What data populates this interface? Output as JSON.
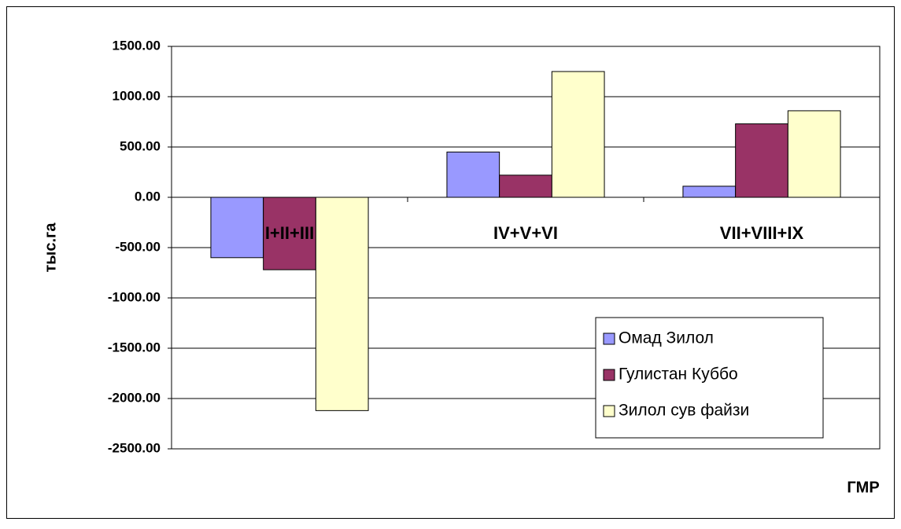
{
  "chart_data": {
    "type": "bar",
    "categories": [
      "I+II+III",
      "IV+V+VI",
      "VII+VIII+IX"
    ],
    "series": [
      {
        "name": "Омад Зилол",
        "color": "#9999ff",
        "values": [
          -600,
          450,
          110
        ]
      },
      {
        "name": "Гулистан Куббо",
        "color": "#993366",
        "values": [
          -720,
          220,
          730
        ]
      },
      {
        "name": "Зилол сув файзи",
        "color": "#ffffcc",
        "values": [
          -2120,
          1250,
          860
        ]
      }
    ],
    "ylabel": "тыс.га",
    "xlabel": "ГМР",
    "ylim": [
      -2500,
      1500
    ],
    "yticks": [
      {
        "value": 1500,
        "label": "1500.00"
      },
      {
        "value": 1000,
        "label": "1000.00"
      },
      {
        "value": 500,
        "label": "500.00"
      },
      {
        "value": 0,
        "label": "0.00"
      },
      {
        "value": -500,
        "label": "-500.00"
      },
      {
        "value": -1000,
        "label": "-1000.00"
      },
      {
        "value": -1500,
        "label": "-1500.00"
      },
      {
        "value": -2000,
        "label": "-2000.00"
      },
      {
        "value": -2500,
        "label": "-2500.00"
      }
    ],
    "grid": true,
    "legend": "lower-right"
  }
}
